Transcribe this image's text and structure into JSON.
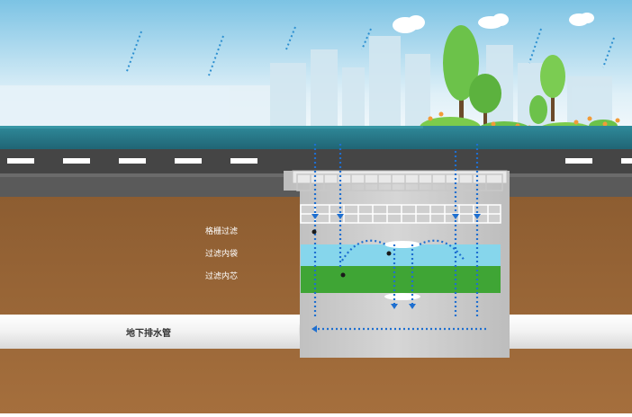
{
  "labels": {
    "grate_filter": "格栅过滤",
    "filter_layer_1": "过滤内袋",
    "filter_layer_2": "过滤内芯",
    "underground_pipe": "地下排水管"
  },
  "colors": {
    "sky_top": "#8ecae6",
    "sky_bottom": "#e8f4fb",
    "water": "#2a7f8f",
    "road": "#4a4a4a",
    "soil": "#8b5a2b",
    "pipe": "#f4f4f4",
    "flow": "#1e6fd0",
    "filter_blue": "#7fd3ea",
    "filter_green": "#3fa535",
    "tree": "#6cc24a"
  },
  "icons": [
    "cloud-icon",
    "tree-icon",
    "flower-icon",
    "rain-drop-icon",
    "flow-arrow-icon"
  ]
}
